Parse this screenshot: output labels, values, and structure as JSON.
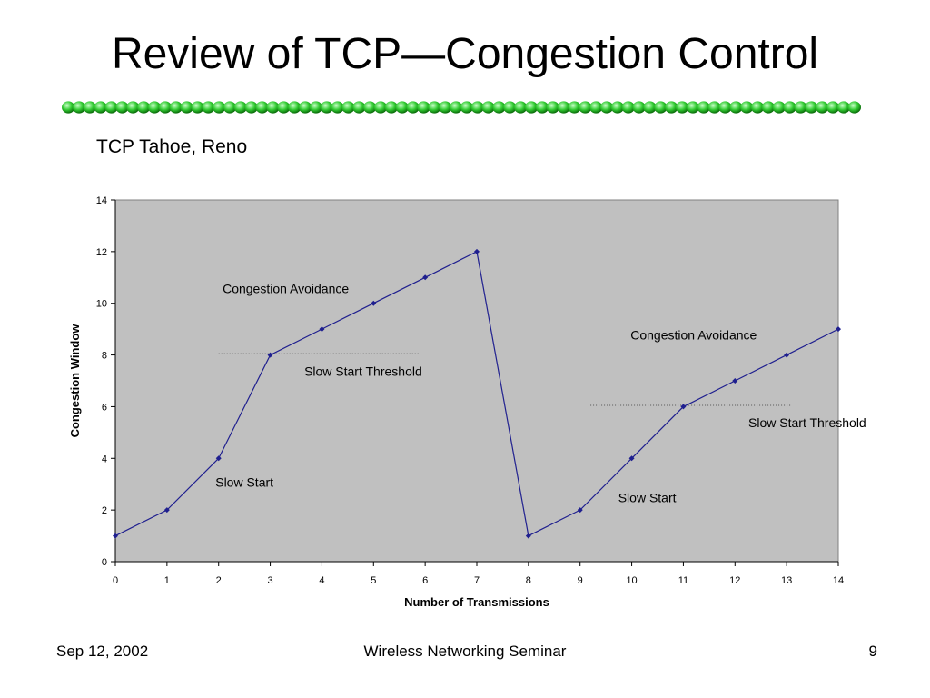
{
  "slide": {
    "title": "Review of TCP—Congestion Control",
    "subtitle": "TCP Tahoe, Reno",
    "divider_color": "#33cc33"
  },
  "footer": {
    "date": "Sep 12, 2002",
    "center": "Wireless Networking Seminar",
    "page": "9"
  },
  "chart_data": {
    "type": "line",
    "x": [
      0,
      1,
      2,
      3,
      4,
      5,
      6,
      7,
      8,
      9,
      10,
      11,
      12,
      13,
      14
    ],
    "series": [
      {
        "values": [
          1,
          2,
          4,
          8,
          9,
          10,
          11,
          12,
          1,
          2,
          4,
          6,
          7,
          8,
          9
        ],
        "color": "#1f1f8f"
      }
    ],
    "xlabel": "Number of Transmissions",
    "ylabel": "Congestion Window",
    "xlim": [
      0,
      14
    ],
    "ylim": [
      0,
      14
    ],
    "xticks": [
      0,
      1,
      2,
      3,
      4,
      5,
      6,
      7,
      8,
      9,
      10,
      11,
      12,
      13,
      14
    ],
    "yticks": [
      0,
      2,
      4,
      6,
      8,
      10,
      12,
      14
    ],
    "plot_background": "#c0c0c0",
    "grid": false,
    "thresholds": [
      {
        "label": "Slow Start Threshold",
        "y": 8.05,
        "x_from": 2,
        "x_to": 5.9
      },
      {
        "label": "Slow Start Threshold",
        "y": 6.05,
        "x_from": 9.2,
        "x_to": 13.1
      }
    ],
    "annotations": [
      {
        "text": "Congestion Avoidance",
        "x": 3.3,
        "y": 10.4
      },
      {
        "text": "Slow Start Threshold",
        "x": 4.8,
        "y": 7.2
      },
      {
        "text": "Slow Start",
        "x": 2.5,
        "y": 2.9
      },
      {
        "text": "Congestion Avoidance",
        "x": 11.2,
        "y": 8.6
      },
      {
        "text": "Slow Start Threshold",
        "x": 13.4,
        "y": 5.2
      },
      {
        "text": "Slow Start",
        "x": 10.3,
        "y": 2.3
      }
    ]
  }
}
